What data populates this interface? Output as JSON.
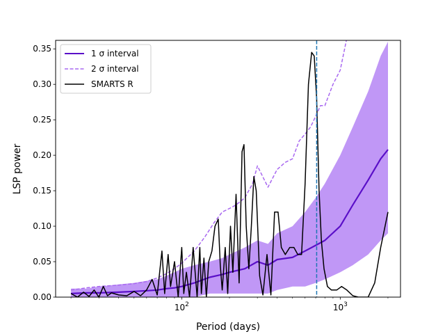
{
  "chart_data": {
    "type": "line",
    "title": "",
    "xlabel": "Period (days)",
    "ylabel": "LSP power",
    "xscale": "log",
    "xlim": [
      16,
      2400
    ],
    "ylim": [
      0.0,
      0.362
    ],
    "x_ticks": [
      {
        "value": 100,
        "base": "10",
        "exp": "2"
      },
      {
        "value": 1000,
        "base": "10",
        "exp": "3"
      }
    ],
    "y_ticks": [
      "0.00",
      "0.05",
      "0.10",
      "0.15",
      "0.20",
      "0.25",
      "0.30",
      "0.35"
    ],
    "y_tick_values": [
      0.0,
      0.05,
      0.1,
      0.15,
      0.2,
      0.25,
      0.3,
      0.35
    ],
    "legend": {
      "position": "upper-left",
      "entries": [
        {
          "label": "1 σ interval",
          "series": "one_sigma"
        },
        {
          "label": "2 σ interval",
          "series": "two_sigma"
        },
        {
          "label": "SMARTS R",
          "series": "smarts"
        }
      ]
    },
    "colors": {
      "one_sigma_line": "#5a0fc8",
      "one_sigma_band": "#b98cf5",
      "two_sigma_line": "#a868f0",
      "smarts": "#000000",
      "vline": "#1f77b4"
    },
    "vline_period": 710,
    "one_sigma_band": {
      "x": [
        20,
        25,
        30,
        40,
        50,
        60,
        70,
        80,
        90,
        100,
        120,
        150,
        180,
        200,
        250,
        300,
        350,
        400,
        500,
        600,
        700,
        800,
        1000,
        1200,
        1500,
        1800,
        2000
      ],
      "lower": [
        0.0,
        0.0,
        0.0,
        0.0,
        0.0,
        0.0,
        0.0,
        0.0,
        0.0,
        0.0,
        0.0,
        0.005,
        0.005,
        0.005,
        0.005,
        0.005,
        0.005,
        0.01,
        0.015,
        0.015,
        0.02,
        0.025,
        0.035,
        0.045,
        0.06,
        0.08,
        0.09
      ],
      "upper": [
        0.012,
        0.012,
        0.015,
        0.018,
        0.02,
        0.023,
        0.025,
        0.03,
        0.035,
        0.04,
        0.045,
        0.05,
        0.055,
        0.06,
        0.07,
        0.08,
        0.075,
        0.09,
        0.1,
        0.12,
        0.14,
        0.16,
        0.2,
        0.24,
        0.29,
        0.34,
        0.36
      ]
    },
    "series": [
      {
        "name": "one_sigma",
        "style": "solid",
        "x": [
          20,
          25,
          30,
          40,
          50,
          60,
          70,
          80,
          90,
          100,
          120,
          150,
          180,
          200,
          250,
          300,
          350,
          400,
          500,
          600,
          700,
          800,
          1000,
          1200,
          1500,
          1800,
          2000
        ],
        "y": [
          0.005,
          0.006,
          0.006,
          0.007,
          0.008,
          0.009,
          0.01,
          0.012,
          0.013,
          0.015,
          0.02,
          0.028,
          0.032,
          0.035,
          0.04,
          0.05,
          0.045,
          0.053,
          0.056,
          0.065,
          0.073,
          0.08,
          0.1,
          0.13,
          0.165,
          0.195,
          0.208
        ]
      },
      {
        "name": "two_sigma",
        "style": "dashed",
        "x": [
          20,
          25,
          30,
          40,
          50,
          60,
          70,
          80,
          90,
          100,
          120,
          140,
          160,
          180,
          200,
          220,
          250,
          280,
          300,
          350,
          400,
          450,
          500,
          550,
          600,
          650,
          700,
          750,
          800,
          900,
          1000,
          1100
        ],
        "y": [
          0.01,
          0.013,
          0.015,
          0.017,
          0.019,
          0.022,
          0.027,
          0.033,
          0.04,
          0.048,
          0.065,
          0.085,
          0.105,
          0.12,
          0.125,
          0.13,
          0.14,
          0.16,
          0.185,
          0.155,
          0.18,
          0.19,
          0.195,
          0.22,
          0.23,
          0.24,
          0.255,
          0.27,
          0.27,
          0.3,
          0.32,
          0.365
        ]
      },
      {
        "name": "smarts",
        "style": "solid",
        "x": [
          20,
          22,
          24,
          26,
          28,
          30,
          32,
          34,
          36,
          40,
          45,
          50,
          55,
          60,
          65,
          70,
          75,
          78,
          82,
          85,
          90,
          95,
          100,
          103,
          107,
          112,
          118,
          125,
          130,
          133,
          138,
          143,
          148,
          155,
          162,
          170,
          175,
          180,
          188,
          195,
          203,
          210,
          220,
          230,
          240,
          247,
          255,
          265,
          275,
          285,
          295,
          310,
          325,
          345,
          365,
          385,
          405,
          425,
          450,
          480,
          510,
          540,
          570,
          600,
          630,
          660,
          685,
          710,
          735,
          760,
          790,
          830,
          880,
          950,
          1020,
          1100,
          1200,
          1300,
          1400,
          1500,
          1650,
          1800,
          2000
        ],
        "y": [
          0.005,
          0.0,
          0.007,
          0.001,
          0.01,
          0.0,
          0.015,
          0.002,
          0.006,
          0.003,
          0.002,
          0.008,
          0.002,
          0.01,
          0.025,
          0.003,
          0.065,
          0.005,
          0.06,
          0.015,
          0.05,
          0.0,
          0.07,
          0.005,
          0.035,
          0.0,
          0.07,
          0.0,
          0.07,
          0.005,
          0.055,
          0.0,
          0.05,
          0.065,
          0.1,
          0.11,
          0.045,
          0.01,
          0.07,
          0.005,
          0.1,
          0.035,
          0.145,
          0.02,
          0.205,
          0.215,
          0.1,
          0.04,
          0.1,
          0.17,
          0.15,
          0.03,
          0.003,
          0.06,
          0.003,
          0.12,
          0.12,
          0.07,
          0.06,
          0.07,
          0.07,
          0.06,
          0.06,
          0.16,
          0.3,
          0.345,
          0.34,
          0.28,
          0.15,
          0.08,
          0.04,
          0.015,
          0.01,
          0.01,
          0.015,
          0.01,
          0.002,
          0.0,
          0.0,
          0.0,
          0.02,
          0.07,
          0.12
        ]
      }
    ]
  }
}
